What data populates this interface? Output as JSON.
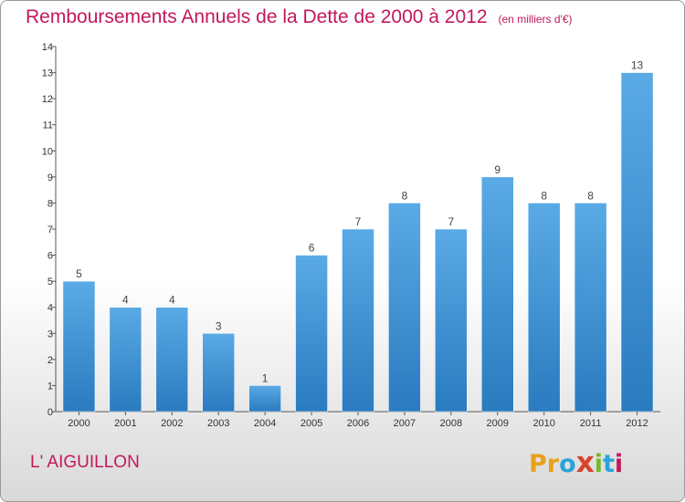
{
  "header": {
    "title": "Remboursements Annuels de la Dette de 2000 à 2012",
    "unit": "(en milliers d'€)"
  },
  "footer": {
    "commune": "L' AIGUILLON",
    "logo": [
      "P",
      "r",
      "o",
      "x",
      "i",
      "t",
      "i"
    ]
  },
  "colors": {
    "title": "#c2185b",
    "bar_top": "#5aaae6",
    "bar_bottom": "#2a7bbf",
    "logo": [
      "#e8a11c",
      "#e8a11c",
      "#29a3d8",
      "#d8432b",
      "#77b82a",
      "#29a3d8",
      "#c2185b"
    ]
  },
  "chart_data": {
    "type": "bar",
    "categories": [
      "2000",
      "2001",
      "2002",
      "2003",
      "2004",
      "2005",
      "2006",
      "2007",
      "2008",
      "2009",
      "2010",
      "2011",
      "2012"
    ],
    "values": [
      5,
      4,
      4,
      3,
      1,
      6,
      7,
      8,
      7,
      9,
      8,
      8,
      13
    ],
    "title": "Remboursements Annuels de la Dette de 2000 à 2012",
    "xlabel": "",
    "ylabel": "",
    "ylim": [
      0,
      14
    ],
    "yticks": [
      0,
      1,
      2,
      3,
      4,
      5,
      6,
      7,
      8,
      9,
      10,
      11,
      12,
      13,
      14
    ],
    "grid": false
  }
}
